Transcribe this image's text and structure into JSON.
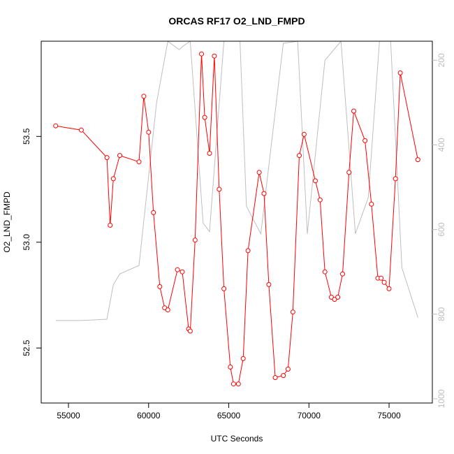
{
  "chart_data": {
    "type": "line",
    "title": "ORCAS RF17 O2_LND_FMPD",
    "xlabel": "UTC Seconds",
    "ylabel": "O2_LND_FMPD",
    "xlim": [
      53300,
      77700
    ],
    "ylim": [
      52.24,
      53.95
    ],
    "x_ticks": [
      55000,
      60000,
      65000,
      70000,
      75000
    ],
    "y_ticks": [
      52.5,
      53.0,
      53.5
    ],
    "y_tick_labels": [
      "52.5",
      "53.0",
      "53.5"
    ],
    "y2lim": [
      1010,
      155
    ],
    "y2_ticks": [
      200,
      400,
      600,
      800,
      1000
    ],
    "colors": {
      "primary": "#ff0000",
      "secondary": "#bebebe"
    },
    "series": [
      {
        "color": "#ff0000",
        "marker": "open-circle",
        "axis": "left",
        "x": [
          54200,
          55800,
          57400,
          57600,
          57800,
          58200,
          59400,
          59700,
          60000,
          60300,
          60700,
          61000,
          61200,
          61800,
          62100,
          62500,
          62600,
          62900,
          63300,
          63500,
          63800,
          64100,
          64400,
          64700,
          65100,
          65300,
          65600,
          65900,
          66200,
          66900,
          67200,
          67500,
          67900,
          68400,
          68700,
          69000,
          69400,
          69700,
          70400,
          70700,
          71000,
          71400,
          71600,
          71800,
          72100,
          72500,
          72800,
          73500,
          73900,
          74300,
          74500,
          74700,
          75000,
          75400,
          75700,
          76800
        ],
        "y": [
          53.55,
          53.53,
          53.4,
          53.08,
          53.3,
          53.41,
          53.38,
          53.69,
          53.52,
          53.14,
          52.79,
          52.69,
          52.68,
          52.87,
          52.86,
          52.59,
          52.58,
          53.01,
          53.89,
          53.59,
          53.42,
          53.88,
          53.25,
          52.78,
          52.41,
          52.33,
          52.33,
          52.45,
          52.96,
          53.33,
          53.23,
          52.8,
          52.36,
          52.37,
          52.4,
          52.67,
          53.41,
          53.51,
          53.29,
          53.2,
          52.86,
          52.74,
          52.73,
          52.74,
          52.85,
          53.33,
          53.62,
          53.48,
          53.18,
          52.83,
          52.83,
          52.81,
          52.78,
          53.3,
          53.8,
          53.39
        ]
      },
      {
        "color": "#bebebe",
        "marker": "none",
        "axis": "right",
        "x": [
          54200,
          55800,
          57400,
          57800,
          58200,
          59400,
          60500,
          61200,
          61900,
          62200,
          62600,
          63400,
          63800,
          64700,
          65200,
          65700,
          66100,
          67000,
          68400,
          69300,
          69900,
          71000,
          72000,
          72900,
          73700,
          74400,
          75100,
          75800,
          76800
        ],
        "y": [
          815,
          815,
          812,
          730,
          705,
          685,
          300,
          155,
          175,
          165,
          155,
          585,
          605,
          155,
          155,
          155,
          545,
          610,
          160,
          155,
          610,
          200,
          155,
          610,
          525,
          155,
          155,
          690,
          808
        ]
      }
    ]
  }
}
